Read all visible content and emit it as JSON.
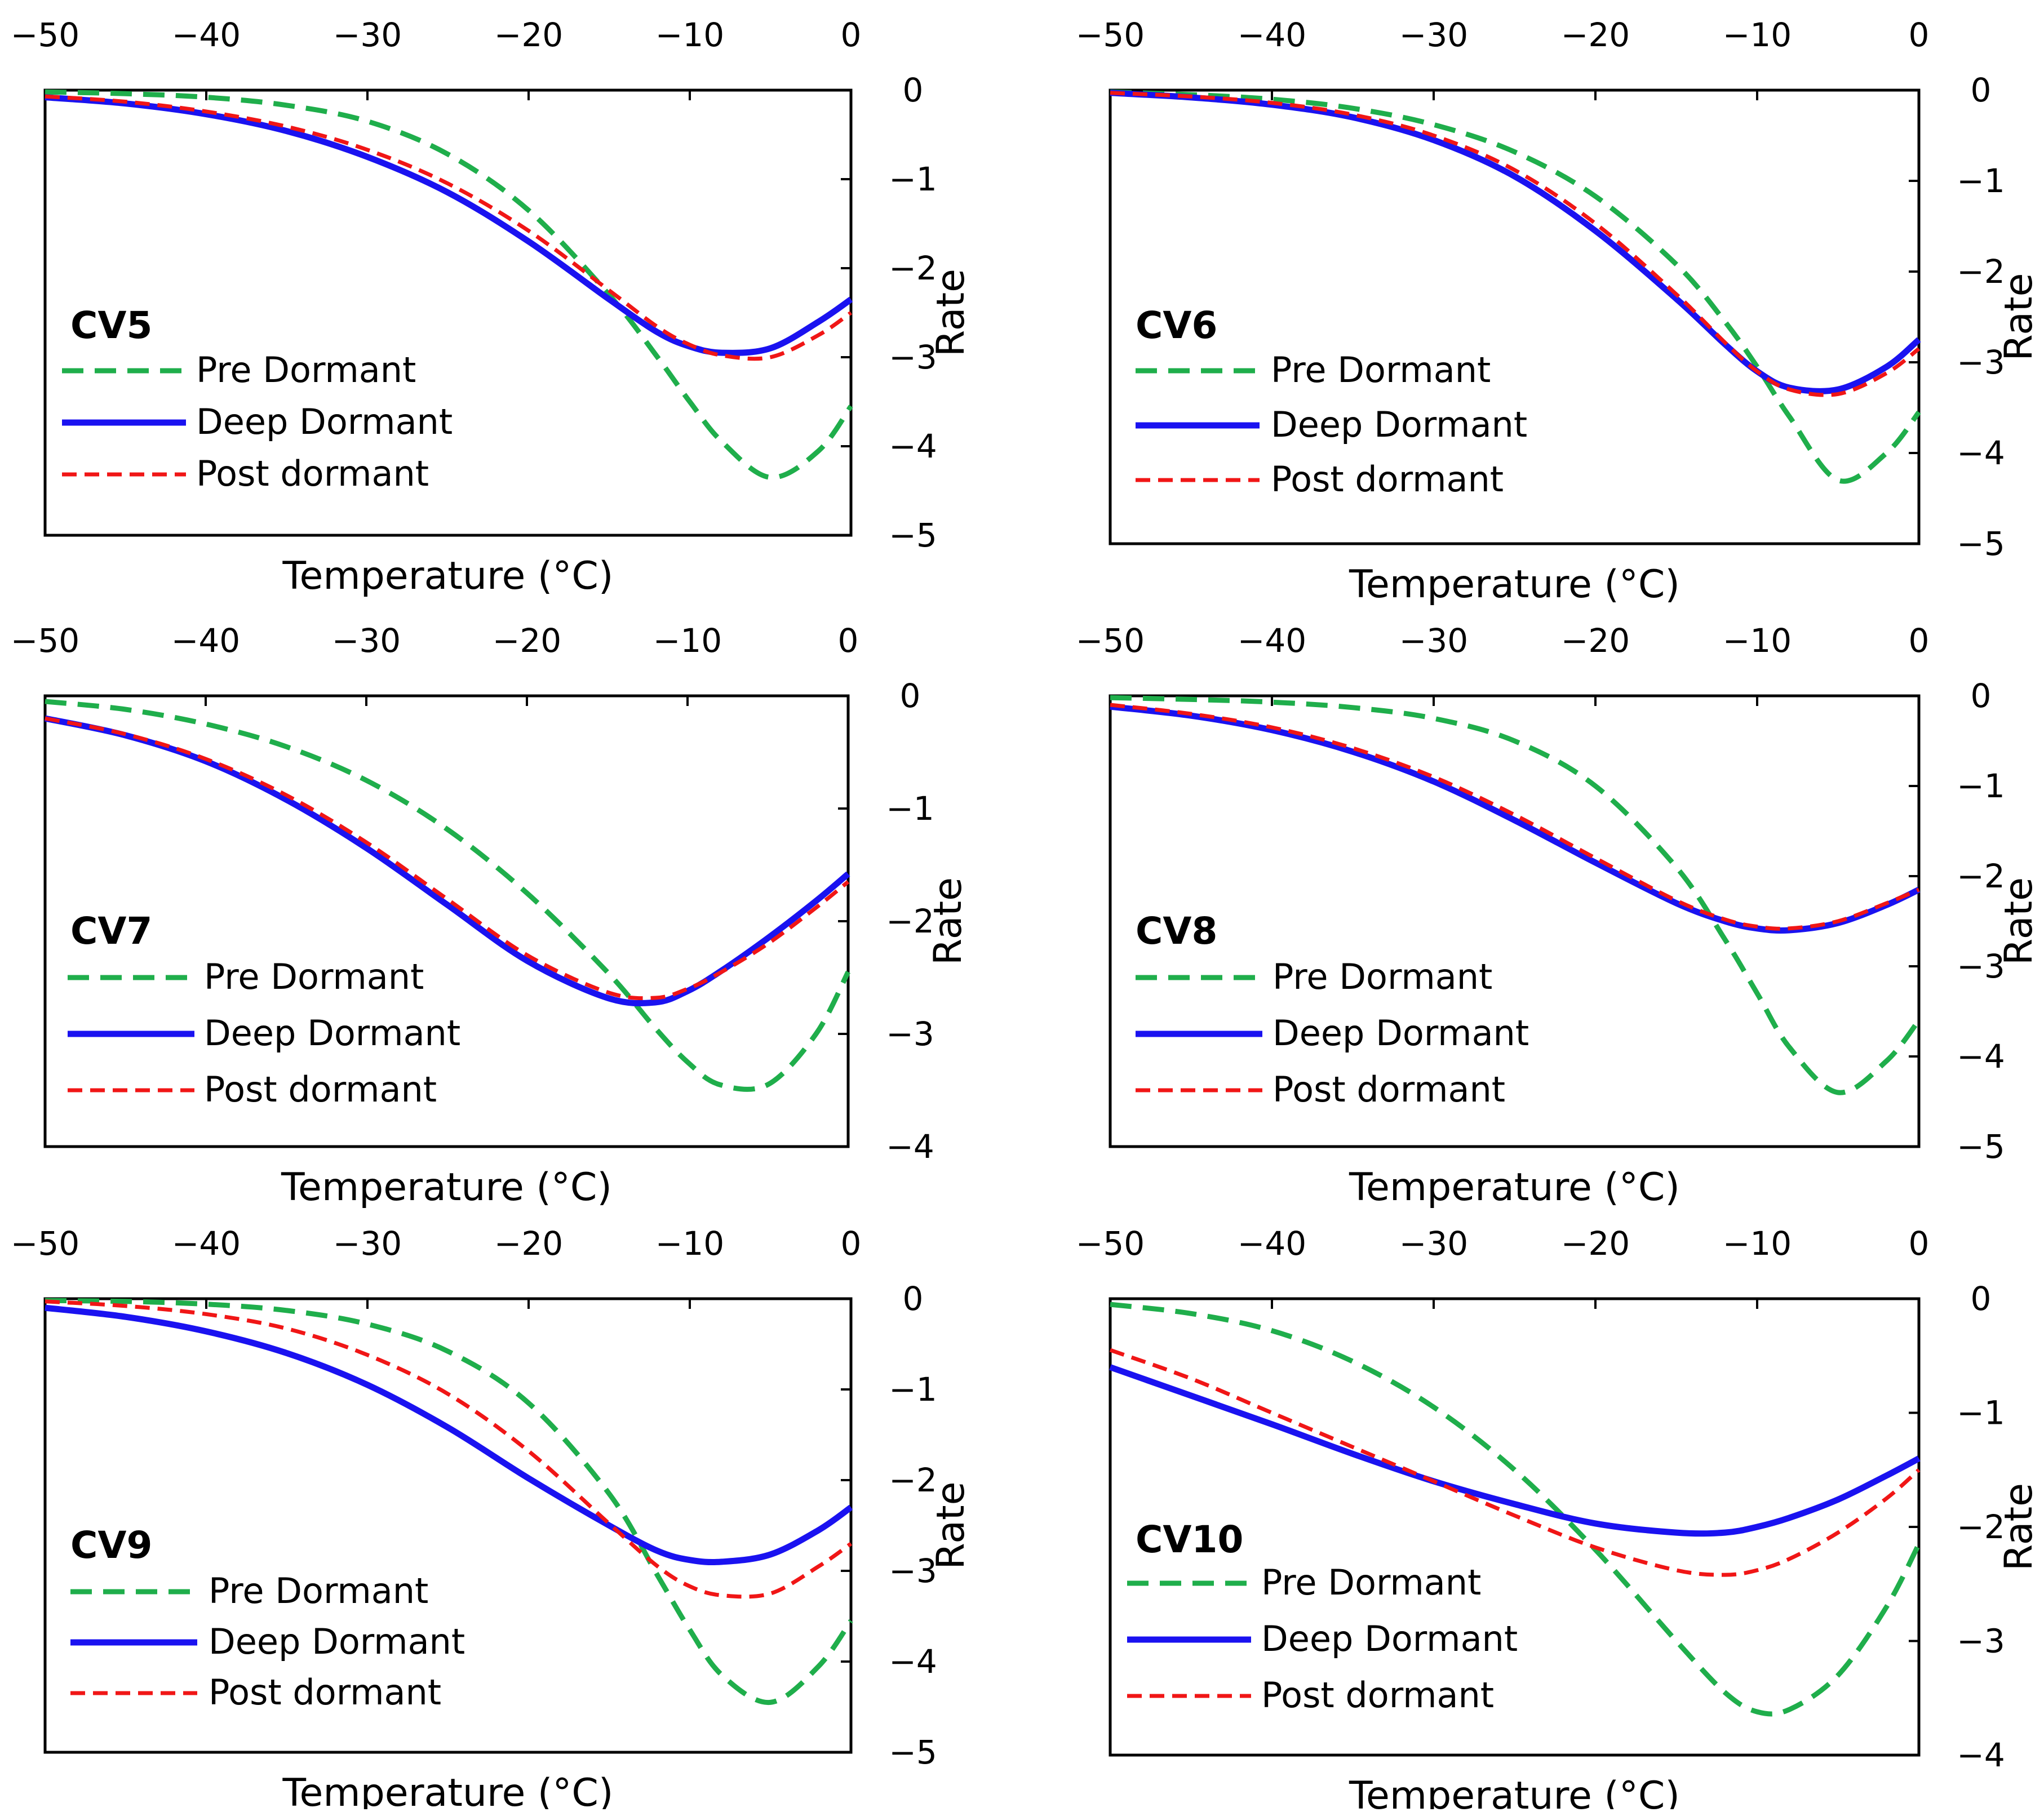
{
  "colors": {
    "pre": "#1fae4b",
    "deep": "#1a12f0",
    "post": "#f01616",
    "axis": "#000000"
  },
  "legend_labels": {
    "pre": "Pre Dormant",
    "deep": "Deep Dormant",
    "post": "Post dormant"
  },
  "chart_data": [
    {
      "type": "line",
      "title": "CV5",
      "xlabel": "Temperature (°C)",
      "ylabel": "Rate",
      "xlim": [
        -50,
        0
      ],
      "ylim": [
        -5,
        0
      ],
      "xticks": [
        "−50",
        "−40",
        "−30",
        "−20",
        "−10",
        "0"
      ],
      "yticks": [
        "0",
        "−1",
        "−2",
        "−3",
        "−4",
        "−5"
      ],
      "x": [
        -50,
        -45,
        -40,
        -35,
        -30,
        -25,
        -20,
        -15,
        -12,
        -10,
        -8,
        -5,
        -2,
        0
      ],
      "series": [
        {
          "key": "pre",
          "name": "Pre Dormant",
          "values": [
            -0.02,
            -0.04,
            -0.08,
            -0.17,
            -0.35,
            -0.72,
            -1.35,
            -2.3,
            -3.0,
            -3.5,
            -3.95,
            -4.35,
            -4.05,
            -3.55
          ]
        },
        {
          "key": "deep",
          "name": "Deep Dormant",
          "values": [
            -0.08,
            -0.15,
            -0.27,
            -0.46,
            -0.75,
            -1.15,
            -1.7,
            -2.35,
            -2.72,
            -2.88,
            -2.95,
            -2.9,
            -2.6,
            -2.35
          ]
        },
        {
          "key": "post",
          "name": "Post dormant",
          "values": [
            -0.07,
            -0.13,
            -0.24,
            -0.41,
            -0.67,
            -1.05,
            -1.58,
            -2.25,
            -2.66,
            -2.86,
            -2.98,
            -3.0,
            -2.75,
            -2.5
          ]
        }
      ]
    },
    {
      "type": "line",
      "title": "CV6",
      "xlabel": "Temperature (°C)",
      "ylabel": "Rate",
      "xlim": [
        -50,
        0
      ],
      "ylim": [
        -5,
        0
      ],
      "xticks": [
        "−50",
        "−40",
        "−30",
        "−20",
        "−10",
        "0"
      ],
      "yticks": [
        "0",
        "−1",
        "−2",
        "−3",
        "−4",
        "−5"
      ],
      "x": [
        -50,
        -45,
        -40,
        -35,
        -30,
        -25,
        -20,
        -15,
        -12,
        -10,
        -8,
        -5,
        -2,
        0
      ],
      "series": [
        {
          "key": "pre",
          "name": "Pre Dormant",
          "values": [
            -0.02,
            -0.05,
            -0.1,
            -0.2,
            -0.38,
            -0.68,
            -1.17,
            -1.92,
            -2.55,
            -3.05,
            -3.6,
            -4.3,
            -4.0,
            -3.55
          ]
        },
        {
          "key": "deep",
          "name": "Deep Dormant",
          "values": [
            -0.03,
            -0.08,
            -0.16,
            -0.3,
            -0.55,
            -0.95,
            -1.55,
            -2.3,
            -2.8,
            -3.1,
            -3.28,
            -3.3,
            -3.05,
            -2.75
          ]
        },
        {
          "key": "post",
          "name": "Post dormant",
          "values": [
            -0.03,
            -0.07,
            -0.14,
            -0.27,
            -0.5,
            -0.88,
            -1.47,
            -2.25,
            -2.78,
            -3.1,
            -3.3,
            -3.35,
            -3.12,
            -2.85
          ]
        }
      ]
    },
    {
      "type": "line",
      "title": "CV7",
      "xlabel": "Temperature (°C)",
      "ylabel": "Rate",
      "xlim": [
        -50,
        0
      ],
      "ylim": [
        -4,
        0
      ],
      "xticks": [
        "−50",
        "−40",
        "−30",
        "−20",
        "−10",
        "0"
      ],
      "yticks": [
        "0",
        "−1",
        "−2",
        "−3",
        "−4"
      ],
      "x": [
        -50,
        -45,
        -40,
        -35,
        -30,
        -25,
        -20,
        -15,
        -12,
        -10,
        -8,
        -5,
        -2,
        0
      ],
      "series": [
        {
          "key": "pre",
          "name": "Pre Dormant",
          "values": [
            -0.05,
            -0.12,
            -0.25,
            -0.45,
            -0.75,
            -1.18,
            -1.75,
            -2.45,
            -2.95,
            -3.25,
            -3.45,
            -3.45,
            -3.0,
            -2.45
          ]
        },
        {
          "key": "deep",
          "name": "Deep Dormant",
          "values": [
            -0.2,
            -0.35,
            -0.58,
            -0.92,
            -1.35,
            -1.85,
            -2.35,
            -2.68,
            -2.72,
            -2.62,
            -2.45,
            -2.15,
            -1.82,
            -1.58
          ]
        },
        {
          "key": "post",
          "name": "Post dormant",
          "values": [
            -0.2,
            -0.34,
            -0.56,
            -0.88,
            -1.3,
            -1.8,
            -2.3,
            -2.63,
            -2.68,
            -2.6,
            -2.46,
            -2.2,
            -1.88,
            -1.65
          ]
        }
      ]
    },
    {
      "type": "line",
      "title": "CV8",
      "xlabel": "Temperature (°C)",
      "ylabel": "Rate",
      "xlim": [
        -50,
        0
      ],
      "ylim": [
        -5,
        0
      ],
      "xticks": [
        "−50",
        "−40",
        "−30",
        "−20",
        "−10",
        "0"
      ],
      "yticks": [
        "0",
        "−1",
        "−2",
        "−3",
        "−4",
        "−5"
      ],
      "x": [
        -50,
        -45,
        -40,
        -35,
        -30,
        -25,
        -20,
        -15,
        -12,
        -10,
        -8,
        -5,
        -2,
        0
      ],
      "series": [
        {
          "key": "pre",
          "name": "Pre Dormant",
          "values": [
            -0.02,
            -0.04,
            -0.07,
            -0.13,
            -0.25,
            -0.5,
            -1.0,
            -1.9,
            -2.7,
            -3.3,
            -3.9,
            -4.4,
            -4.05,
            -3.6
          ]
        },
        {
          "key": "deep",
          "name": "Deep Dormant",
          "values": [
            -0.12,
            -0.22,
            -0.38,
            -0.62,
            -0.95,
            -1.38,
            -1.85,
            -2.3,
            -2.5,
            -2.58,
            -2.6,
            -2.52,
            -2.32,
            -2.15
          ]
        },
        {
          "key": "post",
          "name": "Post dormant",
          "values": [
            -0.1,
            -0.2,
            -0.35,
            -0.58,
            -0.9,
            -1.32,
            -1.8,
            -2.27,
            -2.48,
            -2.56,
            -2.58,
            -2.5,
            -2.3,
            -2.15
          ]
        }
      ]
    },
    {
      "type": "line",
      "title": "CV9",
      "xlabel": "Temperature (°C)",
      "ylabel": "Rate",
      "xlim": [
        -50,
        0
      ],
      "ylim": [
        -5,
        0
      ],
      "xticks": [
        "−50",
        "−40",
        "−30",
        "−20",
        "−10",
        "0"
      ],
      "yticks": [
        "0",
        "−1",
        "−2",
        "−3",
        "−4",
        "−5"
      ],
      "x": [
        -50,
        -45,
        -40,
        -35,
        -30,
        -25,
        -20,
        -15,
        -12,
        -10,
        -8,
        -5,
        -2,
        0
      ],
      "series": [
        {
          "key": "pre",
          "name": "Pre Dormant",
          "values": [
            -0.02,
            -0.03,
            -0.06,
            -0.13,
            -0.28,
            -0.58,
            -1.15,
            -2.15,
            -3.05,
            -3.65,
            -4.15,
            -4.45,
            -4.05,
            -3.55
          ]
        },
        {
          "key": "deep",
          "name": "Deep Dormant",
          "values": [
            -0.1,
            -0.2,
            -0.36,
            -0.6,
            -0.95,
            -1.42,
            -1.98,
            -2.5,
            -2.78,
            -2.88,
            -2.9,
            -2.82,
            -2.55,
            -2.3
          ]
        },
        {
          "key": "post",
          "name": "Post dormant",
          "values": [
            -0.03,
            -0.08,
            -0.17,
            -0.33,
            -0.62,
            -1.05,
            -1.68,
            -2.48,
            -2.95,
            -3.17,
            -3.27,
            -3.25,
            -2.95,
            -2.7
          ]
        }
      ]
    },
    {
      "type": "line",
      "title": "CV10",
      "xlabel": "Temperature (°C)",
      "ylabel": "Rate",
      "xlim": [
        -50,
        0
      ],
      "ylim": [
        -4,
        0
      ],
      "xticks": [
        "−50",
        "−40",
        "−30",
        "−20",
        "−10",
        "0"
      ],
      "yticks": [
        "0",
        "−1",
        "−2",
        "−3",
        "−4"
      ],
      "x": [
        -50,
        -45,
        -40,
        -35,
        -30,
        -25,
        -20,
        -15,
        -12,
        -10,
        -8,
        -5,
        -2,
        0
      ],
      "series": [
        {
          "key": "pre",
          "name": "Pre Dormant",
          "values": [
            -0.05,
            -0.13,
            -0.28,
            -0.55,
            -0.95,
            -1.5,
            -2.2,
            -3.0,
            -3.45,
            -3.62,
            -3.6,
            -3.3,
            -2.7,
            -2.15
          ]
        },
        {
          "key": "deep",
          "name": "Deep Dormant",
          "values": [
            -0.6,
            -0.85,
            -1.1,
            -1.36,
            -1.6,
            -1.8,
            -1.97,
            -2.05,
            -2.05,
            -2.0,
            -1.92,
            -1.76,
            -1.55,
            -1.4
          ]
        },
        {
          "key": "post",
          "name": "Post dormant",
          "values": [
            -0.45,
            -0.7,
            -1.0,
            -1.3,
            -1.6,
            -1.9,
            -2.18,
            -2.38,
            -2.42,
            -2.38,
            -2.28,
            -2.05,
            -1.75,
            -1.5
          ]
        }
      ]
    }
  ]
}
